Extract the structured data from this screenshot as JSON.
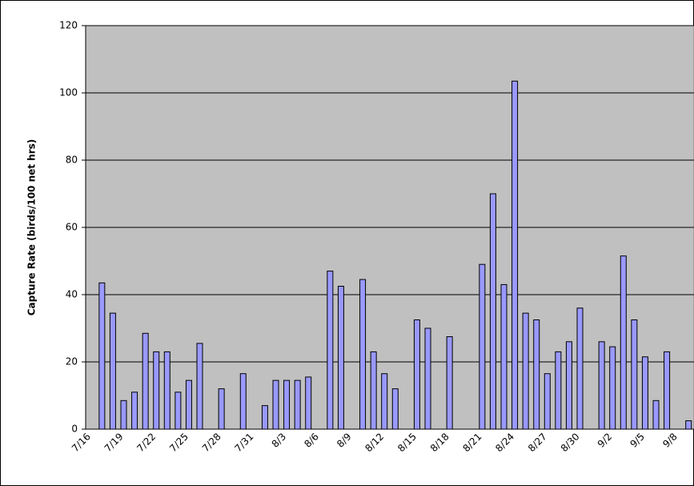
{
  "chart_data": {
    "type": "bar",
    "y_label": "Capture Rate (birds/100 net hrs)",
    "categories": [
      "7/16",
      null,
      null,
      "7/19",
      null,
      null,
      "7/22",
      null,
      null,
      "7/25",
      null,
      null,
      "7/28",
      null,
      null,
      "7/31",
      null,
      null,
      "8/3",
      null,
      null,
      "8/6",
      null,
      null,
      "8/9",
      null,
      null,
      "8/12",
      null,
      null,
      "8/15",
      null,
      null,
      "8/18",
      null,
      null,
      "8/21",
      null,
      null,
      "8/24",
      null,
      null,
      "8/27",
      null,
      null,
      "8/30",
      null,
      null,
      "9/2",
      null,
      null,
      "9/5",
      null,
      null,
      "9/8",
      null
    ],
    "values": [
      null,
      43.5,
      34.5,
      8.5,
      11,
      28.5,
      23,
      23,
      11,
      14.5,
      25.5,
      null,
      12,
      null,
      16.5,
      null,
      7,
      14.5,
      14.5,
      14.5,
      15.5,
      null,
      47,
      42.5,
      null,
      44.5,
      23,
      16.5,
      12,
      null,
      32.5,
      30,
      null,
      27.5,
      null,
      null,
      49,
      70,
      43,
      103.5,
      34.5,
      32.5,
      16.5,
      23,
      26,
      36,
      null,
      26,
      24.5,
      51.5,
      32.5,
      21.5,
      8.5,
      23,
      null,
      2.5
    ],
    "color": "#9999ff",
    "ylim": [
      0,
      120
    ],
    "yticks": [
      0,
      20,
      40,
      60,
      80,
      100,
      120
    ],
    "grid": true
  }
}
